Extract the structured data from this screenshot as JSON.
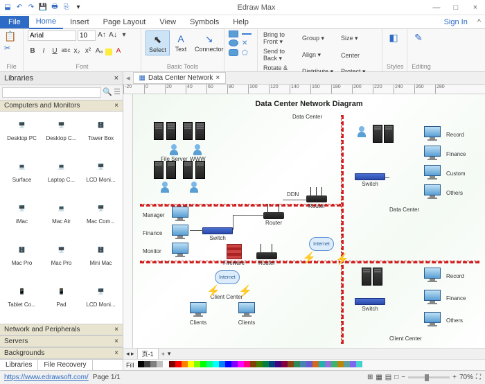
{
  "app": {
    "title": "Edraw Max"
  },
  "window": {
    "min": "—",
    "max": "□",
    "close": "×"
  },
  "qat": [
    "⬓",
    "↶",
    "↷",
    "💾",
    "🖶",
    "⎘",
    "▾"
  ],
  "tabs": {
    "file": "File",
    "items": [
      "Home",
      "Insert",
      "Page Layout",
      "View",
      "Symbols",
      "Help"
    ],
    "active": 0,
    "signin": "Sign In"
  },
  "ribbon": {
    "file_group": "File",
    "font": {
      "family": "Arial",
      "size": "10",
      "label": "Font",
      "row2": [
        "B",
        "I",
        "U",
        "abc",
        "x₂",
        "x²",
        "Aₐ",
        "▾",
        "A",
        "▾"
      ]
    },
    "basic_tools": {
      "label": "Basic Tools",
      "select": "Select",
      "text": "Text",
      "connector": "Connector"
    },
    "shapes": {
      "items": [
        "▭",
        "◯",
        "▭",
        "⬠"
      ]
    },
    "arrange": {
      "label": "Arrange",
      "items": [
        "Bring to Front ▾",
        "Group ▾",
        "Size ▾",
        "Send to Back ▾",
        "Align ▾",
        "Center",
        "Rotate & Flip ▾",
        "Distribute ▾",
        "Protect ▾"
      ]
    },
    "styles": "Styles",
    "editing": "Editing"
  },
  "libs": {
    "title": "Libraries",
    "close": "×",
    "search_ph": "",
    "sections": [
      "Computers and Monitors",
      "Network and Peripherals",
      "Servers",
      "Backgrounds"
    ],
    "items": [
      "Desktop PC",
      "Desktop C...",
      "Tower Box",
      "Surface",
      "Laptop C...",
      "LCD Moni...",
      "iMac",
      "Mac Air",
      "Mac Com...",
      "Mac Pro",
      "Mac Pro",
      "Mini Mac",
      "Tablet Co...",
      "Pad",
      "LCD Moni..."
    ],
    "tabs": [
      "Libraries",
      "File Recovery"
    ]
  },
  "doc": {
    "tab": "Data Center Network",
    "tab_close": "×"
  },
  "ruler": [
    "-20",
    "0",
    "20",
    "40",
    "60",
    "80",
    "100",
    "120",
    "140",
    "160",
    "180",
    "200",
    "220",
    "240",
    "260",
    "280"
  ],
  "diagram": {
    "title": "Data Center Network Diagram",
    "labels": {
      "data_center_top": "Data Center",
      "data_center_right": "Data Center",
      "file_server": "File Server",
      "www": "WWW",
      "manager": "Manager",
      "finance_l": "Finance",
      "monitor": "Monitor",
      "switch_l": "Switch",
      "fireware": "Fireware",
      "router_c": "Router",
      "router_c2": "Router",
      "ddn": "DDN",
      "router_r": "Router",
      "switch_r": "Switch",
      "record_r": "Record",
      "finance_r": "Finance",
      "custom_r": "Custom",
      "others_r": "Others",
      "internet1": "Internet",
      "internet2": "Internet",
      "client_center_l": "Client Center",
      "client_center_r": "Client Center",
      "clients_l": "Clients",
      "clients_r": "Clients",
      "switch_br": "Switch",
      "record_br": "Record",
      "finance_br": "Finance",
      "others_br": "Others"
    }
  },
  "page_strip": {
    "nav": "◂ ▸",
    "page": "页-1",
    "add": "+"
  },
  "fill_label": "Fill",
  "colors": [
    "#000000",
    "#404040",
    "#808080",
    "#c0c0c0",
    "#ffffff",
    "#800000",
    "#ff0000",
    "#ff8000",
    "#ffff00",
    "#80ff00",
    "#00ff00",
    "#00ff80",
    "#00ffff",
    "#0080ff",
    "#0000ff",
    "#8000ff",
    "#ff00ff",
    "#ff0080",
    "#804000",
    "#408000",
    "#008040",
    "#004080",
    "#400080",
    "#800040",
    "#8b4513",
    "#2e8b57",
    "#4682b4",
    "#6a5acd",
    "#d2691e",
    "#20b2aa",
    "#9370db",
    "#3cb371",
    "#b8860b",
    "#5f9ea0",
    "#7b68ee",
    "#48d1cc"
  ],
  "status": {
    "url": "https://www.edrawsoft.com/",
    "page": "Page 1/1",
    "zoom": "70%",
    "btns": [
      "⊞",
      "▦",
      "▤",
      "□"
    ]
  }
}
